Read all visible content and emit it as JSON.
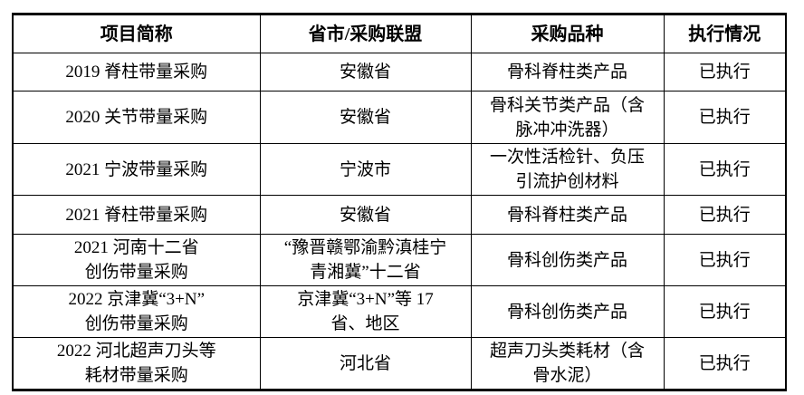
{
  "table": {
    "columns": [
      "项目简称",
      "省市/采购联盟",
      "采购品种",
      "执行情况"
    ],
    "rows": [
      [
        "2019 脊柱带量采购",
        "安徽省",
        "骨科脊柱类产品",
        "已执行"
      ],
      [
        "2020 关节带量采购",
        "安徽省",
        "骨科关节类产品（含\n脉冲冲洗器）",
        "已执行"
      ],
      [
        "2021 宁波带量采购",
        "宁波市",
        "一次性活检针、负压\n引流护创材料",
        "已执行"
      ],
      [
        "2021 脊柱带量采购",
        "安徽省",
        "骨科脊柱类产品",
        "已执行"
      ],
      [
        "2021 河南十二省\n创伤带量采购",
        "“豫晋赣鄂渝黔滇桂宁\n青湘冀”十二省",
        "骨科创伤类产品",
        "已执行"
      ],
      [
        "2022 京津冀“3+N”\n创伤带量采购",
        "京津冀“3+N”等 17\n省、地区",
        "骨科创伤类产品",
        "已执行"
      ],
      [
        "2022 河北超声刀头等\n耗材带量采购",
        "河北省",
        "超声刀头类耗材（含\n骨水泥）",
        "已执行"
      ]
    ]
  }
}
